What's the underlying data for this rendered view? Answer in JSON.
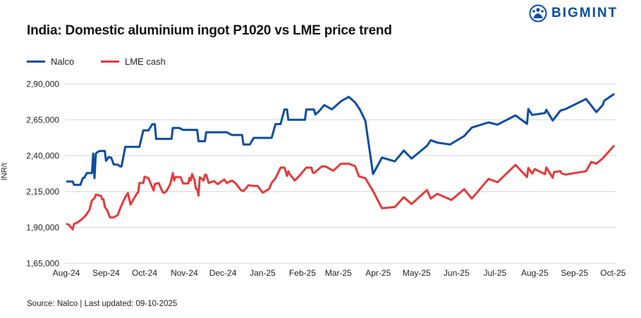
{
  "brand": "BIGMINT",
  "source": "Source: Nalco | Last updated: 09-10-2025",
  "chart_data": {
    "type": "line",
    "title": "India: Domestic aluminium ingot P1020 vs LME price trend",
    "xlabel": "",
    "ylabel": "INR/t",
    "ylim": [
      165000,
      290000
    ],
    "yticks": [
      165000,
      190000,
      215000,
      240000,
      265000,
      290000
    ],
    "ytick_labels": [
      "1,65,000",
      "1,90,000",
      "2,15,000",
      "2,40,000",
      "2,65,000",
      "2,90,000"
    ],
    "xticks": [
      "2024-08-01",
      "2024-09-01",
      "2024-10-01",
      "2024-11-01",
      "2024-12-01",
      "2025-01-01",
      "2025-02-01",
      "2025-03-01",
      "2025-04-01",
      "2025-05-01",
      "2025-06-01",
      "2025-07-01",
      "2025-08-01",
      "2025-09-01",
      "2025-10-01"
    ],
    "xtick_labels": [
      "Aug-24",
      "Sep-24",
      "Oct-24",
      "Nov-24",
      "Dec-24",
      "Jan-25",
      "Feb-25",
      "Mar-25",
      "Apr-25",
      "May-25",
      "Jun-25",
      "Jul-25",
      "Aug-25",
      "Sep-25",
      "Oct-25"
    ],
    "grid": "horizontal",
    "legend": "top-left",
    "series": [
      {
        "name": "Nalco",
        "color": "#0a4da2",
        "points": [
          [
            "2024-08-01",
            222000
          ],
          [
            "2024-08-06",
            222000
          ],
          [
            "2024-08-07",
            219700
          ],
          [
            "2024-08-12",
            219700
          ],
          [
            "2024-08-14",
            224600
          ],
          [
            "2024-08-15",
            224600
          ],
          [
            "2024-08-17",
            227900
          ],
          [
            "2024-08-21",
            227900
          ],
          [
            "2024-08-22",
            241500
          ],
          [
            "2024-08-23",
            224300
          ],
          [
            "2024-08-24",
            241500
          ],
          [
            "2024-08-25",
            242300
          ],
          [
            "2024-08-27",
            243300
          ],
          [
            "2024-08-31",
            243300
          ],
          [
            "2024-09-01",
            236400
          ],
          [
            "2024-09-03",
            239000
          ],
          [
            "2024-09-05",
            238700
          ],
          [
            "2024-09-07",
            233800
          ],
          [
            "2024-09-10",
            233800
          ],
          [
            "2024-09-12",
            232500
          ],
          [
            "2024-09-13",
            232500
          ],
          [
            "2024-09-16",
            246200
          ],
          [
            "2024-09-27",
            246200
          ],
          [
            "2024-09-30",
            257600
          ],
          [
            "2024-10-04",
            257600
          ],
          [
            "2024-10-07",
            261900
          ],
          [
            "2024-10-09",
            261900
          ],
          [
            "2024-10-10",
            251700
          ],
          [
            "2024-10-22",
            251700
          ],
          [
            "2024-10-23",
            259300
          ],
          [
            "2024-10-28",
            259300
          ],
          [
            "2024-10-31",
            258000
          ],
          [
            "2024-11-11",
            258000
          ],
          [
            "2024-11-12",
            250100
          ],
          [
            "2024-11-17",
            250100
          ],
          [
            "2024-11-18",
            256300
          ],
          [
            "2024-12-04",
            256300
          ],
          [
            "2024-12-08",
            254400
          ],
          [
            "2024-12-16",
            254400
          ],
          [
            "2024-12-17",
            247800
          ],
          [
            "2024-12-22",
            247800
          ],
          [
            "2024-12-25",
            252400
          ],
          [
            "2025-01-08",
            252400
          ],
          [
            "2025-01-11",
            262000
          ],
          [
            "2025-01-15",
            262000
          ],
          [
            "2025-01-18",
            272200
          ],
          [
            "2025-01-20",
            272200
          ],
          [
            "2025-01-21",
            265000
          ],
          [
            "2025-02-03",
            265000
          ],
          [
            "2025-02-04",
            272200
          ],
          [
            "2025-02-10",
            272200
          ],
          [
            "2025-02-11",
            268700
          ],
          [
            "2025-02-14",
            271000
          ],
          [
            "2025-02-18",
            275300
          ],
          [
            "2025-02-24",
            272300
          ],
          [
            "2025-03-03",
            277900
          ],
          [
            "2025-03-09",
            281000
          ],
          [
            "2025-03-14",
            277200
          ],
          [
            "2025-03-18",
            271700
          ],
          [
            "2025-03-22",
            264300
          ],
          [
            "2025-03-28",
            227200
          ],
          [
            "2025-04-04",
            238700
          ],
          [
            "2025-04-14",
            236100
          ],
          [
            "2025-04-21",
            243600
          ],
          [
            "2025-04-27",
            238000
          ],
          [
            "2025-05-09",
            246800
          ],
          [
            "2025-05-12",
            250800
          ],
          [
            "2025-05-17",
            249100
          ],
          [
            "2025-05-27",
            247800
          ],
          [
            "2025-06-07",
            253700
          ],
          [
            "2025-06-13",
            259600
          ],
          [
            "2025-06-26",
            263200
          ],
          [
            "2025-07-03",
            261600
          ],
          [
            "2025-07-17",
            268100
          ],
          [
            "2025-07-26",
            262200
          ],
          [
            "2025-07-27",
            272500
          ],
          [
            "2025-07-30",
            268400
          ],
          [
            "2025-08-09",
            269700
          ],
          [
            "2025-08-10",
            272000
          ],
          [
            "2025-08-15",
            264500
          ],
          [
            "2025-08-21",
            271400
          ],
          [
            "2025-08-25",
            272500
          ],
          [
            "2025-09-10",
            279500
          ],
          [
            "2025-09-18",
            270400
          ],
          [
            "2025-09-23",
            275300
          ],
          [
            "2025-09-24",
            278200
          ],
          [
            "2025-10-02",
            283100
          ]
        ]
      },
      {
        "name": "LME cash",
        "color": "#e8393a",
        "points": [
          [
            "2024-08-01",
            192600
          ],
          [
            "2024-08-03",
            191900
          ],
          [
            "2024-08-06",
            188700
          ],
          [
            "2024-08-07",
            192400
          ],
          [
            "2024-08-10",
            193600
          ],
          [
            "2024-08-13",
            195700
          ],
          [
            "2024-08-16",
            198200
          ],
          [
            "2024-08-19",
            202200
          ],
          [
            "2024-08-21",
            208800
          ],
          [
            "2024-08-23",
            210400
          ],
          [
            "2024-08-24",
            212900
          ],
          [
            "2024-08-28",
            212000
          ],
          [
            "2024-08-29",
            209600
          ],
          [
            "2024-08-30",
            209600
          ],
          [
            "2024-08-31",
            204400
          ],
          [
            "2024-09-02",
            201700
          ],
          [
            "2024-09-04",
            197000
          ],
          [
            "2024-09-07",
            197000
          ],
          [
            "2024-09-10",
            198600
          ],
          [
            "2024-09-13",
            205500
          ],
          [
            "2024-09-16",
            211200
          ],
          [
            "2024-09-18",
            214000
          ],
          [
            "2024-09-20",
            206000
          ],
          [
            "2024-09-25",
            213700
          ],
          [
            "2024-09-26",
            214500
          ],
          [
            "2024-09-27",
            221000
          ],
          [
            "2024-09-30",
            221000
          ],
          [
            "2024-10-01",
            225400
          ],
          [
            "2024-10-04",
            224300
          ],
          [
            "2024-10-08",
            215800
          ],
          [
            "2024-10-09",
            220200
          ],
          [
            "2024-10-12",
            221000
          ],
          [
            "2024-10-15",
            214800
          ],
          [
            "2024-10-16",
            214000
          ],
          [
            "2024-10-18",
            215300
          ],
          [
            "2024-10-21",
            220200
          ],
          [
            "2024-10-23",
            227900
          ],
          [
            "2024-10-24",
            222700
          ],
          [
            "2024-10-25",
            225100
          ],
          [
            "2024-10-29",
            225100
          ],
          [
            "2024-10-31",
            220700
          ],
          [
            "2024-11-04",
            220700
          ],
          [
            "2024-11-05",
            224600
          ],
          [
            "2024-11-06",
            222700
          ],
          [
            "2024-11-07",
            227200
          ],
          [
            "2024-11-09",
            222700
          ],
          [
            "2024-11-10",
            216900
          ],
          [
            "2024-11-11",
            216500
          ],
          [
            "2024-11-12",
            212200
          ],
          [
            "2024-11-13",
            225000
          ],
          [
            "2024-11-16",
            222700
          ],
          [
            "2024-11-17",
            226700
          ],
          [
            "2024-11-18",
            226700
          ],
          [
            "2024-11-20",
            221000
          ],
          [
            "2024-11-24",
            222300
          ],
          [
            "2024-11-27",
            220200
          ],
          [
            "2024-12-02",
            223500
          ],
          [
            "2024-12-04",
            221000
          ],
          [
            "2024-12-08",
            222700
          ],
          [
            "2024-12-11",
            220700
          ],
          [
            "2024-12-15",
            216100
          ],
          [
            "2024-12-17",
            215300
          ],
          [
            "2024-12-21",
            219400
          ],
          [
            "2024-12-25",
            218900
          ],
          [
            "2024-12-28",
            218900
          ],
          [
            "2025-01-01",
            214200
          ],
          [
            "2025-01-06",
            216800
          ],
          [
            "2025-01-08",
            221000
          ],
          [
            "2025-01-11",
            224300
          ],
          [
            "2025-01-15",
            231700
          ],
          [
            "2025-01-18",
            231700
          ],
          [
            "2025-01-20",
            225900
          ],
          [
            "2025-01-21",
            229200
          ],
          [
            "2025-01-22",
            227200
          ],
          [
            "2025-01-26",
            222700
          ],
          [
            "2025-01-30",
            226300
          ],
          [
            "2025-02-04",
            231700
          ],
          [
            "2025-02-08",
            231700
          ],
          [
            "2025-02-09",
            228400
          ],
          [
            "2025-02-10",
            227900
          ],
          [
            "2025-02-16",
            232500
          ],
          [
            "2025-02-19",
            232500
          ],
          [
            "2025-02-25",
            229500
          ],
          [
            "2025-03-03",
            234400
          ],
          [
            "2025-03-09",
            234400
          ],
          [
            "2025-03-14",
            232800
          ],
          [
            "2025-03-17",
            225600
          ],
          [
            "2025-03-22",
            224300
          ],
          [
            "2025-03-28",
            215300
          ],
          [
            "2025-04-04",
            203400
          ],
          [
            "2025-04-14",
            204200
          ],
          [
            "2025-04-21",
            211100
          ],
          [
            "2025-04-27",
            206300
          ],
          [
            "2025-05-09",
            216100
          ],
          [
            "2025-05-12",
            210100
          ],
          [
            "2025-05-17",
            213500
          ],
          [
            "2025-05-28",
            209100
          ],
          [
            "2025-06-07",
            216600
          ],
          [
            "2025-06-13",
            210100
          ],
          [
            "2025-06-26",
            223800
          ],
          [
            "2025-07-03",
            221500
          ],
          [
            "2025-07-17",
            233600
          ],
          [
            "2025-07-26",
            225100
          ],
          [
            "2025-07-27",
            231500
          ],
          [
            "2025-07-30",
            227600
          ],
          [
            "2025-08-01",
            230700
          ],
          [
            "2025-08-09",
            227100
          ],
          [
            "2025-08-10",
            231800
          ],
          [
            "2025-08-15",
            224600
          ],
          [
            "2025-08-16",
            228600
          ],
          [
            "2025-08-21",
            229200
          ],
          [
            "2025-08-22",
            227600
          ],
          [
            "2025-08-25",
            226800
          ],
          [
            "2025-09-10",
            229200
          ],
          [
            "2025-09-14",
            235700
          ],
          [
            "2025-09-18",
            234400
          ],
          [
            "2025-09-23",
            238200
          ],
          [
            "2025-10-02",
            247200
          ]
        ]
      }
    ]
  }
}
